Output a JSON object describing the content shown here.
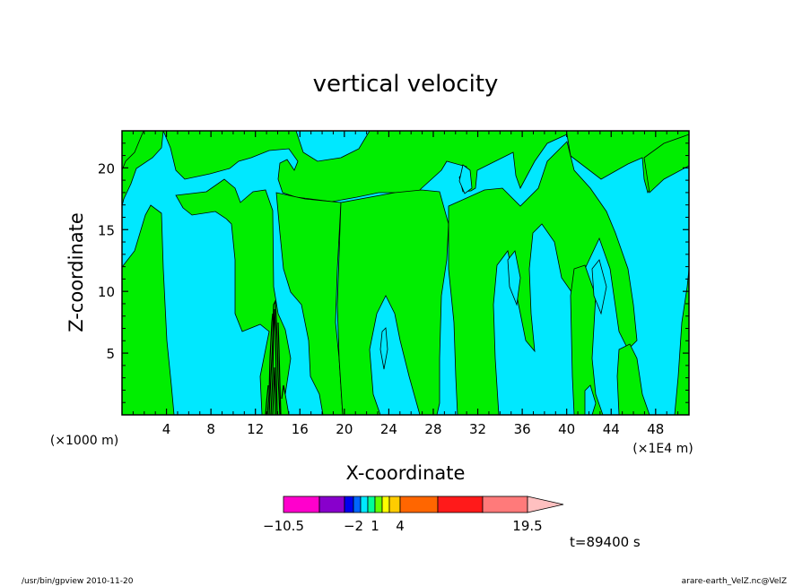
{
  "chart_data": {
    "type": "heatmap",
    "title": "vertical velocity",
    "xlabel": "X-coordinate",
    "ylabel": "Z-coordinate",
    "x_scale_note": "(×1E4 m)",
    "y_scale_note": "(×1000 m)",
    "xlim": [
      0,
      51
    ],
    "ylim": [
      0,
      23
    ],
    "x_ticks": [
      "4",
      "8",
      "12",
      "16",
      "20",
      "24",
      "28",
      "32",
      "36",
      "40",
      "44",
      "48"
    ],
    "y_ticks": [
      "5",
      "10",
      "15",
      "20"
    ],
    "field_colors": {
      "negative": "#00e8ff",
      "positive": "#00ee00",
      "line": "#000000"
    },
    "colorbar": {
      "labels": [
        "−10.5",
        "−2",
        "1",
        "4",
        "19.5"
      ],
      "colors": [
        "#ff00cc",
        "#8800cc",
        "#0000ee",
        "#0066ff",
        "#00e8ff",
        "#00ff99",
        "#66ff00",
        "#ffff00",
        "#ffcc00",
        "#ff6600",
        "#ff1a1a",
        "#ff7a7a",
        "#ffc0c0"
      ]
    },
    "time_label": "t=89400 s"
  },
  "footer": {
    "left": "/usr/bin/gpview   2010-11-20",
    "right": "arare-earth_VelZ.nc@VelZ"
  }
}
